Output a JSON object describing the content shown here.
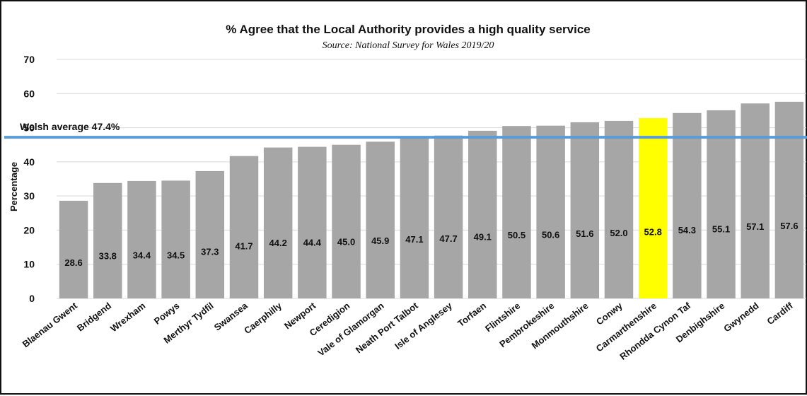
{
  "chart_data": {
    "type": "bar",
    "title": "% Agree that the Local Authority provides a high quality service",
    "subtitle": "Source: National Survey for Wales 2019/20",
    "ylabel": "Percentage",
    "xlabel": "",
    "ylim": [
      0,
      70
    ],
    "yticks": [
      0,
      10,
      20,
      30,
      40,
      50,
      60,
      70
    ],
    "grid": true,
    "categories": [
      "Blaenau Gwent",
      "Bridgend",
      "Wrexham",
      "Powys",
      "Merthyr Tydfil",
      "Swansea",
      "Caerphilly",
      "Newport",
      "Ceredigion",
      "Vale of Glamorgan",
      "Neath Port Talbot",
      "Isle of Anglesey",
      "Torfaen",
      "Flintshire",
      "Pembrokeshire",
      "Monmouthshire",
      "Conwy",
      "Carmarthenshire",
      "Rhondda Cynon Taf",
      "Denbighshire",
      "Gwynedd",
      "Cardiff"
    ],
    "values": [
      28.6,
      33.8,
      34.4,
      34.5,
      37.3,
      41.7,
      44.2,
      44.4,
      45.0,
      45.9,
      47.1,
      47.7,
      49.1,
      50.5,
      50.6,
      51.6,
      52.0,
      52.8,
      54.3,
      55.1,
      57.1,
      57.6
    ],
    "value_labels": [
      "28.6",
      "33.8",
      "34.4",
      "34.5",
      "37.3",
      "41.7",
      "44.2",
      "44.4",
      "45.0",
      "45.9",
      "47.1",
      "47.7",
      "49.1",
      "50.5",
      "50.6",
      "51.6",
      "52.0",
      "52.8",
      "54.3",
      "55.1",
      "57.1",
      "57.6"
    ],
    "highlight": "Carmarthenshire",
    "colors": {
      "bar": "#a6a6a6",
      "highlight": "#ffff00",
      "average_line": "#5b9bd5",
      "grid": "#d9d9d9"
    },
    "reference_line": {
      "label": "Welsh average 47.4%",
      "value": 47.4
    }
  }
}
